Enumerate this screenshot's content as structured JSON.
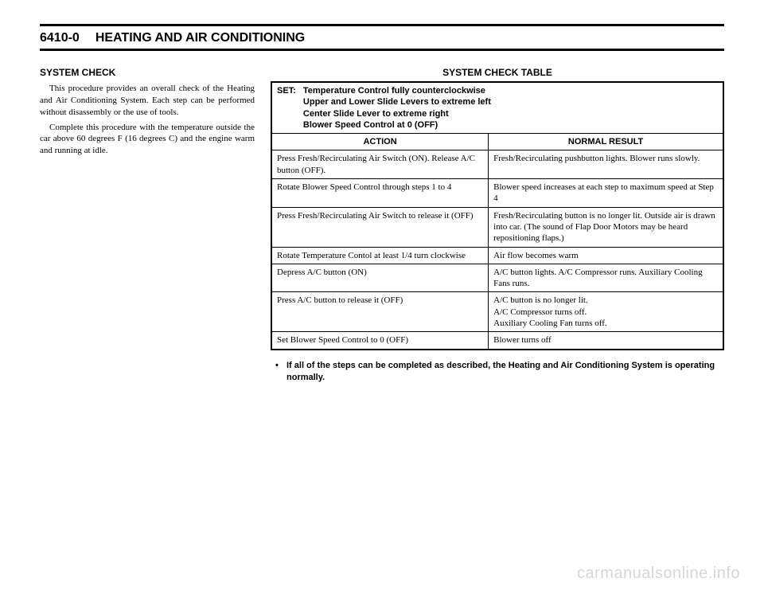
{
  "header": {
    "page_number": "6410-0",
    "title": "HEATING AND AIR CONDITIONING"
  },
  "left": {
    "heading": "SYSTEM CHECK",
    "para1": "This procedure provides an overall check of the Heating and Air Conditioning System. Each step can be performed without disassembly or the use of tools.",
    "para2": "Complete this procedure with the temperature outside the car above 60 degrees F (16 degrees C) and the engine warm and running at idle."
  },
  "table": {
    "title": "SYSTEM CHECK TABLE",
    "set_label": "SET:",
    "set_lines": [
      "Temperature Control fully counterclockwise",
      "Upper and Lower Slide Levers to extreme left",
      "Center Slide Lever to extreme right",
      "Blower Speed Control at 0 (OFF)"
    ],
    "col_action": "ACTION",
    "col_result": "NORMAL RESULT",
    "rows": [
      {
        "action": "Press Fresh/Recirculating Air Switch (ON). Release A/C button (OFF).",
        "result": "Fresh/Recirculating pushbutton lights. Blower runs slowly."
      },
      {
        "action": "Rotate Blower Speed Control through steps 1 to 4",
        "result": "Blower speed increases at each step to maximum speed at Step 4"
      },
      {
        "action": "Press Fresh/Recirculating Air Switch to release it (OFF)",
        "result": "Fresh/Recirculating button is no longer lit. Outside air is drawn into car. (The sound of Flap Door Motors may be heard repositioning flaps.)"
      },
      {
        "action": "Rotate Temperature Contol at least 1/4 turn clockwise",
        "result": "Air flow becomes warm"
      },
      {
        "action": "Depress A/C button (ON)",
        "result": "A/C button lights. A/C Compressor runs. Auxiliary Cooling Fans runs."
      },
      {
        "action": "Press A/C button to release it (OFF)",
        "result": "A/C button is no longer lit.\nA/C Compressor turns off.\nAuxiliary Cooling Fan turns off."
      },
      {
        "action": "Set Blower Speed Control to 0 (OFF)",
        "result": "Blower turns off"
      }
    ]
  },
  "note": {
    "line1": "If all of the steps can be completed as described, the Heating and Air Conditioning System is operating",
    "line2": "normally."
  },
  "watermark": "carmanualsonline.info"
}
